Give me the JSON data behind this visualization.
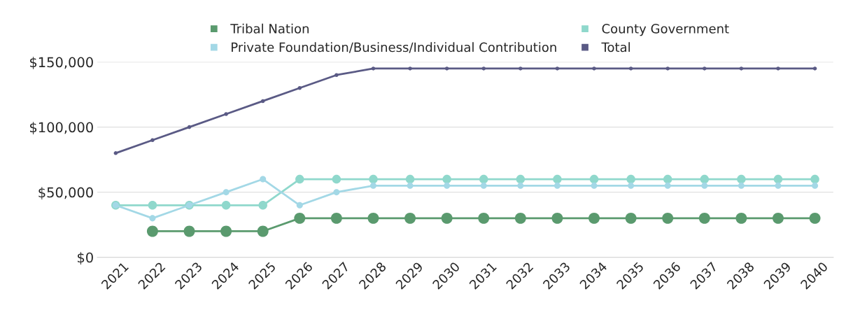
{
  "chart_data": {
    "type": "line",
    "categories": [
      "2021",
      "2022",
      "2023",
      "2024",
      "2025",
      "2026",
      "2027",
      "2028",
      "2029",
      "2030",
      "2031",
      "2032",
      "2033",
      "2034",
      "2035",
      "2036",
      "2037",
      "2038",
      "2039",
      "2040"
    ],
    "series": [
      {
        "name": "Tribal Nation",
        "color": "#5a9a6e",
        "values": [
          null,
          20000,
          20000,
          20000,
          20000,
          30000,
          30000,
          30000,
          30000,
          30000,
          30000,
          30000,
          30000,
          30000,
          30000,
          30000,
          30000,
          30000,
          30000,
          30000
        ]
      },
      {
        "name": "County Government",
        "color": "#8fd8cc",
        "values": [
          40000,
          40000,
          40000,
          40000,
          40000,
          60000,
          60000,
          60000,
          60000,
          60000,
          60000,
          60000,
          60000,
          60000,
          60000,
          60000,
          60000,
          60000,
          60000,
          60000
        ]
      },
      {
        "name": "Private Foundation/Business/Individual Contribution",
        "color": "#a3d8e6",
        "values": [
          40000,
          30000,
          40000,
          50000,
          60000,
          40000,
          50000,
          55000,
          55000,
          55000,
          55000,
          55000,
          55000,
          55000,
          55000,
          55000,
          55000,
          55000,
          55000,
          55000
        ]
      },
      {
        "name": "Total",
        "color": "#5a5a85",
        "values": [
          80000,
          90000,
          100000,
          110000,
          120000,
          130000,
          140000,
          145000,
          145000,
          145000,
          145000,
          145000,
          145000,
          145000,
          145000,
          145000,
          145000,
          145000,
          145000,
          145000
        ]
      }
    ],
    "ylim": [
      0,
      150000
    ],
    "yticks": [
      {
        "value": 0,
        "label": "$0"
      },
      {
        "value": 50000,
        "label": "$50,000"
      },
      {
        "value": 100000,
        "label": "$100,000"
      },
      {
        "value": 150000,
        "label": "$150,000"
      }
    ],
    "grid": "y",
    "legend": "top",
    "marker": "circle",
    "line_style": "solid"
  }
}
